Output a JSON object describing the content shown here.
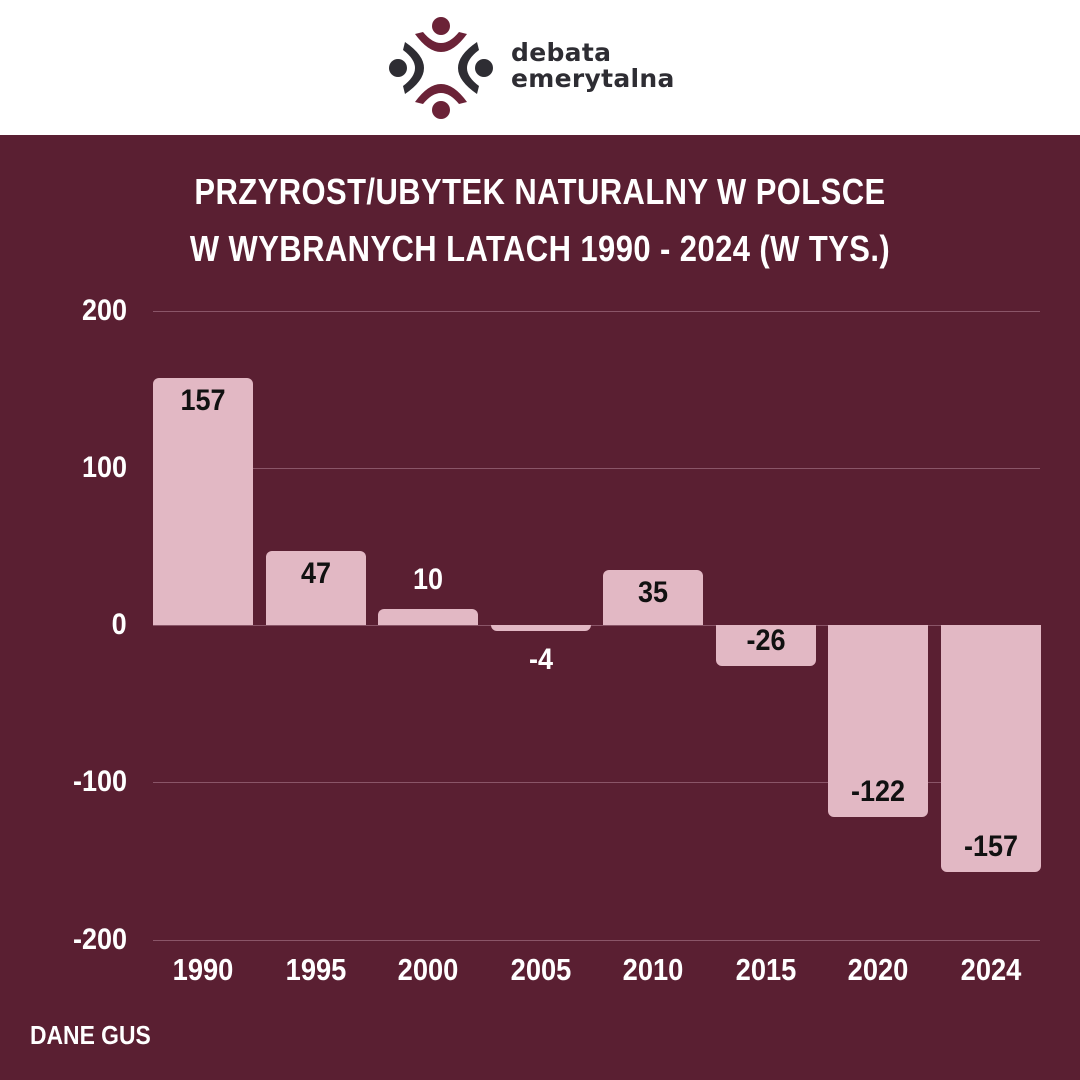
{
  "brand": {
    "name_line1": "debata",
    "name_line2": "emerytalna",
    "colors": {
      "maroon": "#6b2237",
      "dark": "#2e2d33"
    }
  },
  "title": {
    "line1": "PRZYROST/UBYTEK NATURALNY W POLSCE",
    "line2": "W WYBRANYCH LATACH 1990 - 2024 (W TYS.)"
  },
  "source": "DANE GUS",
  "colors": {
    "background": "#5a1f32",
    "bar": "#e2b8c4",
    "text": "#ffffff",
    "label_inside": "#111111",
    "grid": "#8a5568"
  },
  "chart_data": {
    "type": "bar",
    "title": "PRZYROST/UBYTEK NATURALNY W POLSCE W WYBRANYCH LATACH 1990 - 2024 (W TYS.)",
    "xlabel": "",
    "ylabel": "",
    "categories": [
      "1990",
      "1995",
      "2000",
      "2005",
      "2010",
      "2015",
      "2020",
      "2024"
    ],
    "values": [
      157,
      47,
      10,
      -4,
      35,
      -26,
      -122,
      -157
    ],
    "value_labels": [
      "157",
      "47",
      "10",
      "-4",
      "35",
      "-26",
      "-122",
      "-157"
    ],
    "ylim": [
      -200,
      200
    ],
    "yticks": [
      "200",
      "100",
      "0",
      "-100",
      "-200"
    ],
    "ytick_values": [
      200,
      100,
      0,
      -100,
      -200
    ],
    "grid": true,
    "legend": null,
    "source": "DANE GUS"
  }
}
